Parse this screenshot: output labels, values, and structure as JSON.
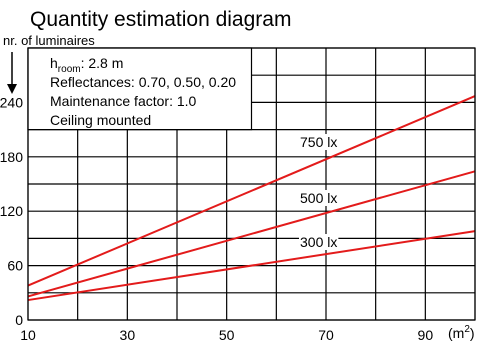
{
  "chart_data": {
    "type": "line",
    "title": "Quantity estimation diagram",
    "y_label": "nr. of luminaires",
    "x_unit": {
      "text": "(m",
      "sup": "2",
      "end": ")"
    },
    "x": [
      10,
      100
    ],
    "xlim": [
      10,
      100
    ],
    "xticks": [
      10,
      30,
      50,
      70,
      90
    ],
    "ylim": [
      0,
      300
    ],
    "yticks": [
      0,
      60,
      120,
      180,
      240
    ],
    "xgrid": [
      10,
      20,
      30,
      40,
      50,
      60,
      70,
      80,
      90,
      100
    ],
    "ygrid": [
      0,
      30,
      60,
      90,
      120,
      150,
      180,
      210,
      240,
      270,
      300
    ],
    "grid": true,
    "series": [
      {
        "name": "750 lx",
        "color": "#e31b1b",
        "values": [
          38,
          247
        ]
      },
      {
        "name": "500 lx",
        "color": "#e31b1b",
        "values": [
          26,
          164
        ]
      },
      {
        "name": "300 lx",
        "color": "#e31b1b",
        "values": [
          22,
          98
        ]
      }
    ],
    "info": {
      "h": "h",
      "sub": "room",
      "rest": ": 2.8 m",
      "lines": [
        "Reflectances: 0.70, 0.50, 0.20",
        "Maintenance factor: 1.0",
        "Ceiling mounted"
      ]
    }
  }
}
